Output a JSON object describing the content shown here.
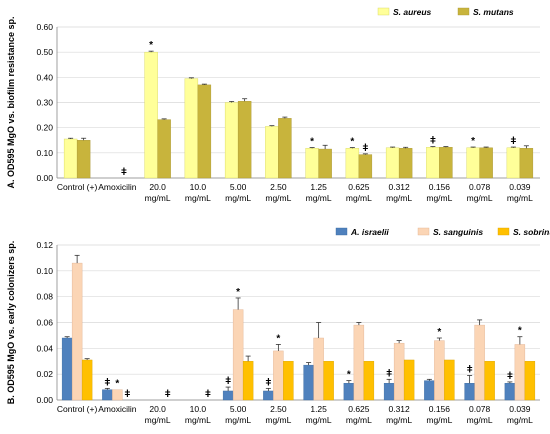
{
  "chart_data": [
    {
      "type": "bar",
      "ylabel": "A. OD595 MgO vs. biofilm resistance sp.",
      "ylim": [
        0,
        0.6
      ],
      "yticks": [
        "0.00",
        "0.10",
        "0.20",
        "0.30",
        "0.40",
        "0.50",
        "0.60"
      ],
      "categories": [
        "Control (+)",
        "Amoxicilin",
        "20.0\nmg/mL",
        "10.0\nmg/mL",
        "5.00\nmg/mL",
        "2.50\nmg/mL",
        "1.25\nmg/mL",
        "0.625\nmg/mL",
        "0.312\nmg/mL",
        "0.156\nmg/mL",
        "0.078\nmg/mL",
        "0.039\nmg/mL"
      ],
      "legend_position": "top-right",
      "series": [
        {
          "name": "S. aureus",
          "color": "#ffff99",
          "stroke": "#d4d45a",
          "values": [
            0.155,
            0.0,
            0.5,
            0.395,
            0.3,
            0.205,
            0.118,
            0.118,
            0.12,
            0.122,
            0.12,
            0.12
          ],
          "errors": [
            0.003,
            0.0,
            0.004,
            0.003,
            0.004,
            0.003,
            0.003,
            0.003,
            0.003,
            0.003,
            0.003,
            0.003
          ],
          "marks": [
            "",
            "",
            "*",
            "",
            "",
            "",
            "*",
            "*",
            "",
            "ǂ",
            "*",
            "ǂ"
          ]
        },
        {
          "name": "S. mutans",
          "color": "#c8b43c",
          "stroke": "#a89430",
          "values": [
            0.15,
            0.0,
            0.232,
            0.37,
            0.305,
            0.237,
            0.115,
            0.093,
            0.118,
            0.122,
            0.12,
            0.118
          ],
          "errors": [
            0.008,
            0.0,
            0.003,
            0.003,
            0.01,
            0.005,
            0.015,
            0.003,
            0.004,
            0.003,
            0.003,
            0.01
          ],
          "marks": [
            "",
            "ǂ",
            "",
            "",
            "",
            "",
            "",
            "ǂ",
            "",
            "",
            "",
            ""
          ]
        }
      ]
    },
    {
      "type": "bar",
      "ylabel": "B. OD595 MgO vs. early colonizers sp.",
      "ylim": [
        0,
        0.12
      ],
      "yticks": [
        "0.00",
        "0.02",
        "0.04",
        "0.06",
        "0.08",
        "0.10",
        "0.12"
      ],
      "categories": [
        "Control (+)",
        "Amoxicilin",
        "20.0\nmg/mL",
        "10.0\nmg/mL",
        "5.00\nmg/mL",
        "2.50\nmg/mL",
        "1.25\nmg/mL",
        "0.625\nmg/mL",
        "0.312\nmg/mL",
        "0.156\nmg/mL",
        "0.078\nmg/mL",
        "0.039\nmg/mL"
      ],
      "legend_position": "top-right",
      "series": [
        {
          "name": "A. israelii",
          "color": "#4f81bd",
          "stroke": "#3a6aa0",
          "values": [
            0.048,
            0.008,
            0.0,
            0.0,
            0.007,
            0.007,
            0.027,
            0.013,
            0.013,
            0.015,
            0.013,
            0.013
          ],
          "errors": [
            0.001,
            0.001,
            0.0,
            0.0,
            0.003,
            0.002,
            0.002,
            0.002,
            0.003,
            0.001,
            0.006,
            0.001
          ],
          "marks": [
            "",
            "ǂ",
            "",
            "",
            "ǂ",
            "ǂ",
            "",
            "*",
            "ǂ",
            "",
            "ǂ",
            "ǂ"
          ]
        },
        {
          "name": "S. sanguinis",
          "color": "#fbd5b5",
          "stroke": "#e0b090",
          "values": [
            0.106,
            0.008,
            0.0,
            0.0,
            0.07,
            0.038,
            0.048,
            0.058,
            0.044,
            0.046,
            0.058,
            0.043
          ],
          "errors": [
            0.006,
            0.0,
            0.0,
            0.0,
            0.009,
            0.005,
            0.012,
            0.002,
            0.002,
            0.002,
            0.004,
            0.006
          ],
          "marks": [
            "",
            "*",
            "",
            "",
            "*",
            "*",
            "",
            "",
            "",
            "*",
            "",
            "*"
          ]
        },
        {
          "name": "S. sobrinus",
          "color": "#ffc000",
          "stroke": "#d9a300",
          "values": [
            0.031,
            0.0,
            0.0,
            0.0,
            0.03,
            0.03,
            0.03,
            0.03,
            0.031,
            0.031,
            0.03,
            0.03
          ],
          "errors": [
            0.001,
            0.0,
            0.0,
            0.0,
            0.004,
            0.0,
            0.0,
            0.0,
            0.0,
            0.0,
            0.0,
            0.0
          ],
          "marks": [
            "",
            "ǂ",
            "ǂ",
            "ǂ",
            "",
            "",
            "",
            "",
            "",
            "",
            "",
            ""
          ]
        }
      ]
    }
  ]
}
